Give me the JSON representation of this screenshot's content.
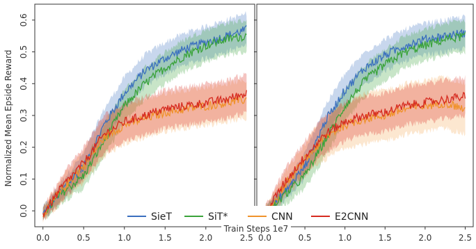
{
  "chart_data": {
    "type": "line",
    "xlabel": "Train Steps 1e7",
    "ylabel": "Normalized Mean Epside Reward",
    "xlim": [
      -0.1,
      2.6
    ],
    "ylim": [
      -0.05,
      0.65
    ],
    "xticks": [
      "0.0",
      "0.5",
      "1.0",
      "1.5",
      "2.0",
      "2.5"
    ],
    "yticks": [
      "0.0",
      "0.1",
      "0.2",
      "0.3",
      "0.4",
      "0.5",
      "0.6"
    ],
    "grid": false,
    "legend_position": "bottom-center",
    "colors": {
      "SieT": "#3a6fbf",
      "SiT*": "#3aa33a",
      "CNN": "#f0922b",
      "E2CNN": "#d62a1f"
    },
    "legend": [
      "SieT",
      "SiT*",
      "CNN",
      "E2CNN"
    ],
    "panels": [
      {
        "x": [
          0.0,
          0.25,
          0.5,
          0.75,
          1.0,
          1.25,
          1.5,
          1.75,
          2.0,
          2.25,
          2.5
        ],
        "series": [
          {
            "name": "SieT",
            "values": [
              -0.01,
              0.07,
              0.14,
              0.27,
              0.37,
              0.44,
              0.48,
              0.51,
              0.53,
              0.55,
              0.57
            ],
            "band": [
              0.02,
              0.03,
              0.04,
              0.05,
              0.05,
              0.05,
              0.05,
              0.05,
              0.05,
              0.05,
              0.05
            ]
          },
          {
            "name": "SiT*",
            "values": [
              -0.01,
              0.06,
              0.11,
              0.22,
              0.33,
              0.4,
              0.45,
              0.49,
              0.52,
              0.54,
              0.55
            ],
            "band": [
              0.02,
              0.03,
              0.04,
              0.05,
              0.05,
              0.05,
              0.05,
              0.05,
              0.05,
              0.05,
              0.05
            ]
          },
          {
            "name": "CNN",
            "values": [
              -0.01,
              0.07,
              0.14,
              0.23,
              0.27,
              0.29,
              0.31,
              0.32,
              0.33,
              0.34,
              0.35
            ],
            "band": [
              0.02,
              0.04,
              0.05,
              0.06,
              0.06,
              0.06,
              0.06,
              0.06,
              0.06,
              0.06,
              0.06
            ]
          },
          {
            "name": "E2CNN",
            "values": [
              -0.01,
              0.08,
              0.15,
              0.24,
              0.28,
              0.3,
              0.32,
              0.33,
              0.34,
              0.35,
              0.37
            ],
            "band": [
              0.02,
              0.04,
              0.05,
              0.06,
              0.06,
              0.06,
              0.06,
              0.06,
              0.06,
              0.06,
              0.06
            ]
          }
        ]
      },
      {
        "x": [
          0.0,
          0.25,
          0.5,
          0.75,
          1.0,
          1.25,
          1.5,
          1.75,
          2.0,
          2.25,
          2.5
        ],
        "series": [
          {
            "name": "SieT",
            "values": [
              -0.01,
              0.06,
              0.14,
              0.28,
              0.38,
              0.45,
              0.49,
              0.52,
              0.54,
              0.55,
              0.56
            ],
            "band": [
              0.02,
              0.03,
              0.04,
              0.05,
              0.05,
              0.05,
              0.05,
              0.05,
              0.05,
              0.05,
              0.05
            ]
          },
          {
            "name": "SiT*",
            "values": [
              -0.01,
              0.05,
              0.11,
              0.22,
              0.33,
              0.41,
              0.46,
              0.5,
              0.52,
              0.54,
              0.55
            ],
            "band": [
              0.02,
              0.03,
              0.04,
              0.05,
              0.05,
              0.05,
              0.05,
              0.05,
              0.05,
              0.05,
              0.05
            ]
          },
          {
            "name": "CNN",
            "values": [
              -0.01,
              0.08,
              0.16,
              0.23,
              0.27,
              0.29,
              0.3,
              0.32,
              0.33,
              0.34,
              0.32
            ],
            "band": [
              0.02,
              0.04,
              0.05,
              0.07,
              0.07,
              0.08,
              0.08,
              0.08,
              0.08,
              0.08,
              0.08
            ]
          },
          {
            "name": "E2CNN",
            "values": [
              -0.01,
              0.09,
              0.17,
              0.24,
              0.28,
              0.3,
              0.31,
              0.33,
              0.34,
              0.35,
              0.36
            ],
            "band": [
              0.02,
              0.04,
              0.05,
              0.06,
              0.06,
              0.06,
              0.06,
              0.06,
              0.06,
              0.06,
              0.06
            ]
          }
        ]
      }
    ]
  }
}
